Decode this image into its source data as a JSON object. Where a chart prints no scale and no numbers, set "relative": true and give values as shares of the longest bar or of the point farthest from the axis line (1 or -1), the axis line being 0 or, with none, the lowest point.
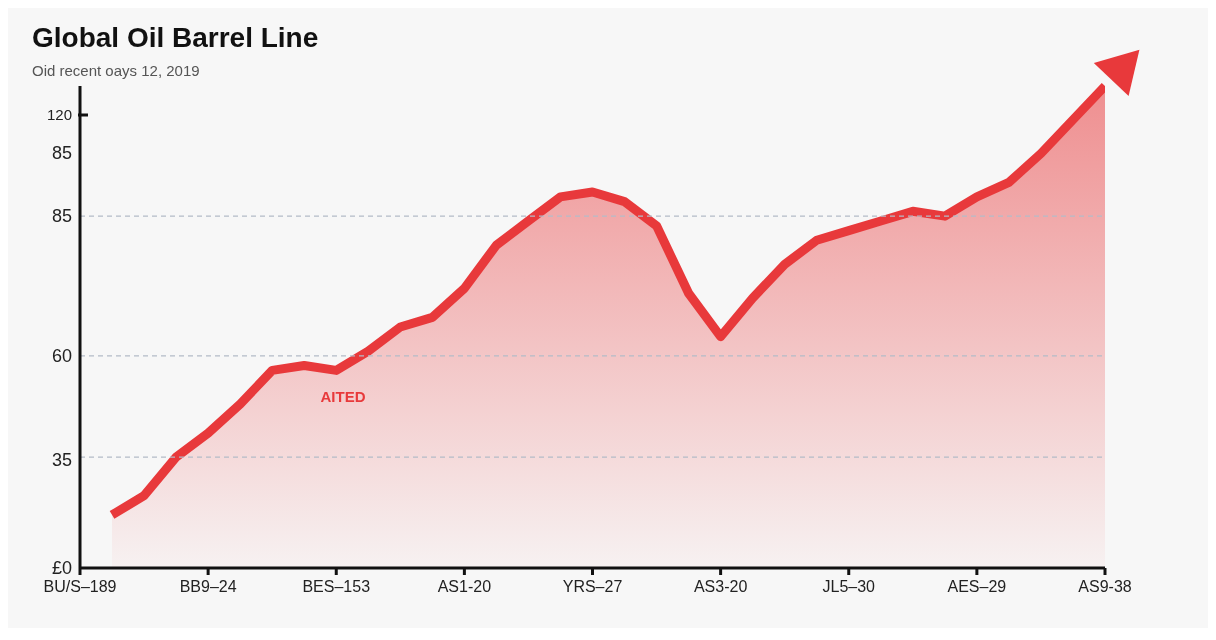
{
  "chart_data": {
    "type": "area",
    "title": "Global Oil Barrel Line",
    "subtitle": "Oid recent oays 12, 2019",
    "relative": true,
    "categories": [
      "BU/S–189",
      null,
      null,
      null,
      "BB9–24",
      null,
      null,
      null,
      "BES–153",
      null,
      null,
      null,
      "AS1-20",
      null,
      null,
      null,
      "YRS–27",
      null,
      null,
      null,
      "AS3-20",
      null,
      null,
      null,
      "JL5–30",
      null,
      null,
      null,
      "AES–29",
      null,
      null,
      null,
      "AS9-38"
    ],
    "values": [
      null,
      0.11,
      0.15,
      0.23,
      0.28,
      0.34,
      0.41,
      0.42,
      0.41,
      0.45,
      0.5,
      0.52,
      0.58,
      0.67,
      0.72,
      0.77,
      0.78,
      0.76,
      0.71,
      0.57,
      0.48,
      0.56,
      0.63,
      0.68,
      0.7,
      0.72,
      0.74,
      0.73,
      0.77,
      0.8,
      0.86,
      0.93,
      1
    ],
    "color": "#e8393b",
    "marker": "none",
    "line_style": "solid",
    "ref_lines": [
      {
        "axis": "y",
        "value": 0.23,
        "color": "#b4bcc8",
        "line_style": "dashed"
      },
      {
        "axis": "y",
        "value": 0.44,
        "color": "#b4bcc8",
        "line_style": "dashed"
      },
      {
        "axis": "y",
        "value": 0.73,
        "color": "#b4bcc8",
        "line_style": "dashed"
      }
    ],
    "annotations": [
      "120",
      "85",
      "85",
      "60",
      "35",
      "£0",
      "AITED"
    ]
  }
}
